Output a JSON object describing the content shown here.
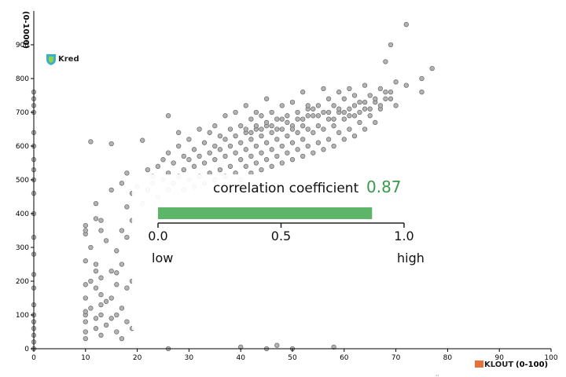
{
  "chart_data": {
    "type": "scatter",
    "xlabel": "(0-100)",
    "ylabel": "(0-1000)",
    "x_brand": "KLOUT",
    "y_brand": "Kred",
    "xlim": [
      0,
      100
    ],
    "ylim": [
      0,
      1000
    ],
    "x_ticks": [
      "0",
      "10",
      "20",
      "30",
      "40",
      "50",
      "60",
      "70",
      "80",
      "90",
      "100"
    ],
    "y_ticks": [
      "0",
      "100",
      "200",
      "300",
      "400",
      "500",
      "600",
      "700",
      "800",
      "900"
    ],
    "grid": false,
    "legend": "none",
    "marker_color": "#b3b3b3",
    "marker_edge": "#666666",
    "points": [
      [
        0,
        0
      ],
      [
        0,
        20
      ],
      [
        0,
        40
      ],
      [
        0,
        60
      ],
      [
        0,
        80
      ],
      [
        0,
        100
      ],
      [
        0,
        130
      ],
      [
        0,
        180
      ],
      [
        0,
        220
      ],
      [
        0,
        280
      ],
      [
        0,
        330
      ],
      [
        0,
        400
      ],
      [
        0,
        460
      ],
      [
        0,
        500
      ],
      [
        0,
        530
      ],
      [
        0,
        560
      ],
      [
        0,
        600
      ],
      [
        0,
        640
      ],
      [
        0,
        700
      ],
      [
        0,
        720
      ],
      [
        0,
        740
      ],
      [
        0,
        760
      ],
      [
        10,
        30
      ],
      [
        10,
        50
      ],
      [
        10,
        80
      ],
      [
        10,
        100
      ],
      [
        10,
        110
      ],
      [
        10,
        150
      ],
      [
        10,
        190
      ],
      [
        10,
        260
      ],
      [
        10,
        340
      ],
      [
        10,
        350
      ],
      [
        10,
        365
      ],
      [
        11,
        120
      ],
      [
        11,
        200
      ],
      [
        11,
        300
      ],
      [
        12,
        60
      ],
      [
        12,
        90
      ],
      [
        12,
        180
      ],
      [
        12,
        230
      ],
      [
        12,
        250
      ],
      [
        12,
        385
      ],
      [
        12,
        430
      ],
      [
        13,
        40
      ],
      [
        13,
        100
      ],
      [
        13,
        130
      ],
      [
        13,
        160
      ],
      [
        13,
        210
      ],
      [
        13,
        350
      ],
      [
        13,
        380
      ],
      [
        14,
        70
      ],
      [
        14,
        140
      ],
      [
        14,
        320
      ],
      [
        15,
        90
      ],
      [
        15,
        150
      ],
      [
        15,
        230
      ],
      [
        15,
        470
      ],
      [
        16,
        50
      ],
      [
        16,
        100
      ],
      [
        16,
        190
      ],
      [
        16,
        225
      ],
      [
        16,
        290
      ],
      [
        17,
        30
      ],
      [
        17,
        120
      ],
      [
        17,
        250
      ],
      [
        17,
        350
      ],
      [
        17,
        490
      ],
      [
        18,
        80
      ],
      [
        18,
        180
      ],
      [
        18,
        330
      ],
      [
        18,
        420
      ],
      [
        18,
        520
      ],
      [
        19,
        60
      ],
      [
        19,
        200
      ],
      [
        19,
        380
      ],
      [
        19,
        460
      ],
      [
        11,
        613
      ],
      [
        15,
        607
      ],
      [
        21,
        617
      ],
      [
        26,
        690
      ],
      [
        20,
        480
      ],
      [
        21,
        430
      ],
      [
        22,
        470
      ],
      [
        22,
        530
      ],
      [
        23,
        490
      ],
      [
        23,
        510
      ],
      [
        24,
        450
      ],
      [
        24,
        540
      ],
      [
        25,
        500
      ],
      [
        25,
        560
      ],
      [
        26,
        470
      ],
      [
        26,
        520
      ],
      [
        26,
        580
      ],
      [
        27,
        490
      ],
      [
        27,
        550
      ],
      [
        28,
        510
      ],
      [
        28,
        600
      ],
      [
        28,
        640
      ],
      [
        29,
        470
      ],
      [
        29,
        530
      ],
      [
        29,
        570
      ],
      [
        30,
        500
      ],
      [
        30,
        560
      ],
      [
        30,
        620
      ],
      [
        31,
        480
      ],
      [
        31,
        540
      ],
      [
        31,
        590
      ],
      [
        32,
        510
      ],
      [
        32,
        570
      ],
      [
        32,
        650
      ],
      [
        33,
        490
      ],
      [
        33,
        550
      ],
      [
        33,
        610
      ],
      [
        34,
        520
      ],
      [
        34,
        580
      ],
      [
        34,
        640
      ],
      [
        35,
        500
      ],
      [
        35,
        560
      ],
      [
        35,
        600
      ],
      [
        35,
        660
      ],
      [
        36,
        530
      ],
      [
        36,
        590
      ],
      [
        36,
        630
      ],
      [
        37,
        510
      ],
      [
        37,
        570
      ],
      [
        37,
        620
      ],
      [
        37,
        690
      ],
      [
        38,
        540
      ],
      [
        38,
        600
      ],
      [
        38,
        650
      ],
      [
        39,
        520
      ],
      [
        39,
        580
      ],
      [
        39,
        630
      ],
      [
        39,
        700
      ],
      [
        40,
        500
      ],
      [
        40,
        560
      ],
      [
        40,
        610
      ],
      [
        40,
        660
      ],
      [
        41,
        540
      ],
      [
        41,
        590
      ],
      [
        41,
        640
      ],
      [
        41,
        720
      ],
      [
        42,
        520
      ],
      [
        42,
        570
      ],
      [
        42,
        620
      ],
      [
        42,
        680
      ],
      [
        43,
        550
      ],
      [
        43,
        600
      ],
      [
        43,
        650
      ],
      [
        43,
        700
      ],
      [
        44,
        530
      ],
      [
        44,
        580
      ],
      [
        44,
        630
      ],
      [
        44,
        690
      ],
      [
        45,
        560
      ],
      [
        45,
        610
      ],
      [
        45,
        660
      ],
      [
        45,
        740
      ],
      [
        46,
        540
      ],
      [
        46,
        590
      ],
      [
        46,
        640
      ],
      [
        46,
        700
      ],
      [
        47,
        570
      ],
      [
        47,
        620
      ],
      [
        47,
        680
      ],
      [
        48,
        550
      ],
      [
        48,
        600
      ],
      [
        48,
        650
      ],
      [
        48,
        720
      ],
      [
        49,
        580
      ],
      [
        49,
        630
      ],
      [
        49,
        690
      ],
      [
        50,
        560
      ],
      [
        50,
        610
      ],
      [
        50,
        660
      ],
      [
        50,
        730
      ],
      [
        51,
        590
      ],
      [
        51,
        640
      ],
      [
        51,
        700
      ],
      [
        52,
        570
      ],
      [
        52,
        620
      ],
      [
        52,
        680
      ],
      [
        52,
        760
      ],
      [
        53,
        600
      ],
      [
        53,
        650
      ],
      [
        53,
        710
      ],
      [
        54,
        580
      ],
      [
        54,
        640
      ],
      [
        54,
        690
      ],
      [
        55,
        610
      ],
      [
        55,
        660
      ],
      [
        55,
        720
      ],
      [
        56,
        590
      ],
      [
        56,
        650
      ],
      [
        56,
        700
      ],
      [
        56,
        770
      ],
      [
        57,
        620
      ],
      [
        57,
        680
      ],
      [
        57,
        740
      ],
      [
        58,
        600
      ],
      [
        58,
        660
      ],
      [
        58,
        720
      ],
      [
        59,
        640
      ],
      [
        59,
        700
      ],
      [
        59,
        760
      ],
      [
        60,
        620
      ],
      [
        60,
        680
      ],
      [
        60,
        740
      ],
      [
        61,
        650
      ],
      [
        61,
        710
      ],
      [
        61,
        770
      ],
      [
        62,
        630
      ],
      [
        62,
        690
      ],
      [
        62,
        750
      ],
      [
        63,
        670
      ],
      [
        63,
        730
      ],
      [
        64,
        650
      ],
      [
        64,
        710
      ],
      [
        64,
        780
      ],
      [
        65,
        690
      ],
      [
        65,
        750
      ],
      [
        66,
        670
      ],
      [
        66,
        730
      ],
      [
        67,
        710
      ],
      [
        67,
        770
      ],
      [
        68,
        740
      ],
      [
        69,
        760
      ],
      [
        70,
        720
      ],
      [
        70,
        790
      ],
      [
        72,
        780
      ],
      [
        75,
        760
      ],
      [
        75,
        800
      ],
      [
        77,
        830
      ],
      [
        69,
        900
      ],
      [
        68,
        850
      ],
      [
        72,
        960
      ],
      [
        53,
        720
      ],
      [
        54,
        710
      ],
      [
        55,
        690
      ],
      [
        57,
        700
      ],
      [
        58,
        680
      ],
      [
        59,
        710
      ],
      [
        60,
        700
      ],
      [
        61,
        690
      ],
      [
        62,
        720
      ],
      [
        63,
        700
      ],
      [
        64,
        730
      ],
      [
        65,
        710
      ],
      [
        66,
        740
      ],
      [
        67,
        720
      ],
      [
        68,
        760
      ],
      [
        69,
        740
      ],
      [
        41,
        650
      ],
      [
        42,
        640
      ],
      [
        43,
        660
      ],
      [
        44,
        650
      ],
      [
        45,
        670
      ],
      [
        46,
        660
      ],
      [
        47,
        650
      ],
      [
        48,
        680
      ],
      [
        49,
        670
      ],
      [
        50,
        650
      ],
      [
        51,
        680
      ],
      [
        52,
        660
      ],
      [
        53,
        690
      ],
      [
        45,
        0
      ],
      [
        47,
        10
      ],
      [
        50,
        0
      ],
      [
        40,
        5
      ],
      [
        26,
        0
      ],
      [
        58,
        5
      ]
    ]
  },
  "overlay": {
    "label": "correlation coefficient",
    "value": 0.87,
    "value_text": "0.87",
    "bar_color": "#5db56a",
    "scale_ticks": [
      "0.0",
      "0.5",
      "1.0"
    ],
    "low_label": "low",
    "high_label": "high"
  },
  "footer_mark": "''"
}
